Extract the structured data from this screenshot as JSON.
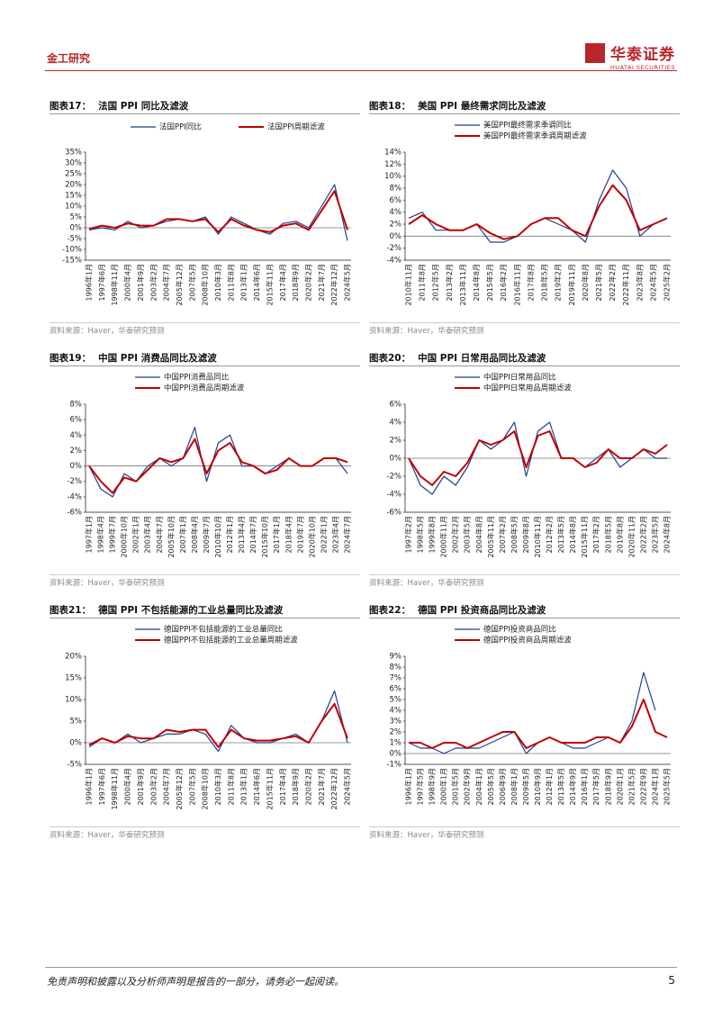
{
  "header": {
    "section": "金工研究",
    "brand": "华泰证券",
    "brand_en": "HUATAI SECURITIES"
  },
  "charts": [
    {
      "type": "line",
      "label": "图表17：",
      "title": "法国 PPI 同比及滤波",
      "categories": [
        "1996年1月",
        "1997年6月",
        "1998年11月",
        "2000年4月",
        "2001年9月",
        "2003年2月",
        "2004年7月",
        "2005年12月",
        "2007年5月",
        "2008年10月",
        "2010年3月",
        "2011年8月",
        "2013年1月",
        "2014年6月",
        "2015年11月",
        "2017年4月",
        "2018年9月",
        "2020年2月",
        "2021年7月",
        "2022年12月",
        "2024年5月"
      ],
      "series": [
        {
          "name": "法国PPI同比",
          "color": "#1f3f8f",
          "values": [
            -1,
            0,
            -1,
            3,
            0,
            1,
            3,
            4,
            3,
            5,
            -3,
            5,
            2,
            -1,
            -3,
            2,
            3,
            0,
            10,
            20,
            -6
          ]
        },
        {
          "name": "法国PPI周期滤波",
          "color": "#c00000",
          "values": [
            -0.5,
            1,
            0,
            2,
            1,
            1,
            4,
            4,
            3,
            4,
            -2,
            4,
            1,
            -1,
            -2,
            1,
            2,
            -1,
            8,
            17,
            -1
          ]
        }
      ],
      "ylim": [
        -15,
        35
      ],
      "yticks": [
        {
          "value": -15,
          "label": "-15%"
        },
        {
          "value": -10,
          "label": "-10%"
        },
        {
          "value": -5,
          "label": "-5%"
        },
        {
          "value": 0,
          "label": "0%"
        },
        {
          "value": 5,
          "label": "5%"
        },
        {
          "value": 10,
          "label": "10%"
        },
        {
          "value": 15,
          "label": "15%"
        },
        {
          "value": 20,
          "label": "20%"
        },
        {
          "value": 25,
          "label": "25%"
        },
        {
          "value": 30,
          "label": "30%"
        },
        {
          "value": 35,
          "label": "35%"
        }
      ],
      "source": "资料来源：Haver，华泰研究预测"
    },
    {
      "type": "line",
      "label": "图表18：",
      "title": "美国 PPI 最终需求同比及滤波",
      "categories": [
        "2010年11月",
        "2011年8月",
        "2012年5月",
        "2013年2月",
        "2013年11月",
        "2014年8月",
        "2015年5月",
        "2016年2月",
        "2016年11月",
        "2017年8月",
        "2018年5月",
        "2019年2月",
        "2019年11月",
        "2020年8月",
        "2021年5月",
        "2022年2月",
        "2022年11月",
        "2023年8月",
        "2024年5月",
        "2025年2月"
      ],
      "series": [
        {
          "name": "美国PPI最终需求季调同比",
          "color": "#1f3f8f",
          "values": [
            3,
            4,
            1,
            1,
            1,
            2,
            -1,
            -1,
            0,
            2,
            3,
            2,
            1,
            -1,
            6,
            11,
            8,
            0,
            2,
            null
          ]
        },
        {
          "name": "美国PPI最终需求季调周期滤波",
          "color": "#c00000",
          "values": [
            2,
            3.5,
            2,
            1,
            1,
            2,
            0.5,
            -0.5,
            0,
            2,
            3,
            3,
            1,
            0,
            5,
            8.5,
            6,
            1,
            2,
            3
          ]
        }
      ],
      "ylim": [
        -4,
        14
      ],
      "yticks": [
        {
          "value": -4,
          "label": "-4%"
        },
        {
          "value": -2,
          "label": "-2%"
        },
        {
          "value": 0,
          "label": "0%"
        },
        {
          "value": 2,
          "label": "2%"
        },
        {
          "value": 4,
          "label": "4%"
        },
        {
          "value": 6,
          "label": "6%"
        },
        {
          "value": 8,
          "label": "8%"
        },
        {
          "value": 10,
          "label": "10%"
        },
        {
          "value": 12,
          "label": "12%"
        },
        {
          "value": 14,
          "label": "14%"
        }
      ],
      "source": "资料来源：Haver，华泰研究预测"
    },
    {
      "type": "line",
      "label": "图表19：",
      "title": "中国 PPI 消费品同比及滤波",
      "categories": [
        "1997年1月",
        "1998年4月",
        "1999年7月",
        "2000年10月",
        "2002年1月",
        "2003年4月",
        "2004年7月",
        "2005年10月",
        "2007年1月",
        "2008年4月",
        "2009年7月",
        "2010年10月",
        "2012年1月",
        "2013年4月",
        "2014年7月",
        "2015年10月",
        "2017年1月",
        "2018年4月",
        "2019年7月",
        "2020年10月",
        "2022年1月",
        "2023年4月",
        "2024年7月"
      ],
      "series": [
        {
          "name": "中国PPI消费品同比",
          "color": "#1f3f8f",
          "values": [
            0,
            -3,
            -4,
            -1,
            -2,
            0,
            1,
            0,
            1,
            5,
            -2,
            3,
            4,
            0,
            0,
            -1,
            0,
            1,
            0,
            0,
            1,
            1,
            -1
          ]
        },
        {
          "name": "中国PPI消费品周期滤波",
          "color": "#c00000",
          "values": [
            0,
            -2,
            -3.5,
            -1.5,
            -2,
            -0.5,
            1,
            0.5,
            1,
            3.5,
            -1,
            2,
            3,
            0.5,
            0,
            -1,
            -0.5,
            1,
            0,
            0,
            1,
            1,
            0.5
          ]
        }
      ],
      "ylim": [
        -6,
        8
      ],
      "yticks": [
        {
          "value": -6,
          "label": "-6%"
        },
        {
          "value": -4,
          "label": "-4%"
        },
        {
          "value": -2,
          "label": "-2%"
        },
        {
          "value": 0,
          "label": "0%"
        },
        {
          "value": 2,
          "label": "2%"
        },
        {
          "value": 4,
          "label": "4%"
        },
        {
          "value": 6,
          "label": "6%"
        },
        {
          "value": 8,
          "label": "8%"
        }
      ],
      "source": "资料来源：Haver，华泰研究预测"
    },
    {
      "type": "line",
      "label": "图表20：",
      "title": "中国 PPI 日常用品同比及滤波",
      "categories": [
        "1997年2月",
        "1998年5月",
        "1999年8月",
        "2000年11月",
        "2002年2月",
        "2003年5月",
        "2004年8月",
        "2005年11月",
        "2007年2月",
        "2008年5月",
        "2009年8月",
        "2010年11月",
        "2012年2月",
        "2013年5月",
        "2014年8月",
        "2015年11月",
        "2017年2月",
        "2018年5月",
        "2019年8月",
        "2020年11月",
        "2022年2月",
        "2023年5月",
        "2024年8月"
      ],
      "series": [
        {
          "name": "中国PPI日常用品同比",
          "color": "#1f3f8f",
          "values": [
            0,
            -3,
            -4,
            -2,
            -3,
            -1,
            2,
            1,
            2,
            4,
            -2,
            3,
            4,
            0,
            0,
            -1,
            0,
            1,
            -1,
            0,
            1,
            0,
            0
          ]
        },
        {
          "name": "中国PPI日常用品周期滤波",
          "color": "#c00000",
          "values": [
            0,
            -2,
            -3,
            -1.5,
            -2,
            -0.5,
            2,
            1.5,
            2,
            3,
            -1,
            2.5,
            3,
            0,
            0,
            -1,
            -0.5,
            1,
            0,
            0,
            1,
            0.5,
            1.5
          ]
        }
      ],
      "ylim": [
        -6,
        6
      ],
      "yticks": [
        {
          "value": -6,
          "label": "-6%"
        },
        {
          "value": -4,
          "label": "-4%"
        },
        {
          "value": -2,
          "label": "-2%"
        },
        {
          "value": 0,
          "label": "0%"
        },
        {
          "value": 2,
          "label": "2%"
        },
        {
          "value": 4,
          "label": "4%"
        },
        {
          "value": 6,
          "label": "6%"
        }
      ],
      "source": "资料来源：Haver，华泰研究预测"
    },
    {
      "type": "line",
      "label": "图表21：",
      "title": "德国 PPI 不包括能源的工业总量同比及滤波",
      "categories": [
        "1996年1月",
        "1997年6月",
        "1998年11月",
        "2000年4月",
        "2001年9月",
        "2003年2月",
        "2004年7月",
        "2005年12月",
        "2007年5月",
        "2008年10月",
        "2010年3月",
        "2011年8月",
        "2013年1月",
        "2014年6月",
        "2015年11月",
        "2017年4月",
        "2018年9月",
        "2020年2月",
        "2021年7月",
        "2022年12月",
        "2024年5月"
      ],
      "series": [
        {
          "name": "德国PPI不包括能源的工业总量同比",
          "color": "#1f3f8f",
          "values": [
            -1,
            1,
            0,
            2,
            0,
            1,
            2,
            2,
            3,
            2,
            -2,
            4,
            1,
            0,
            0,
            1,
            2,
            0,
            5,
            12,
            0
          ]
        },
        {
          "name": "德国PPI不包括能源的工业总量周期滤波",
          "color": "#c00000",
          "values": [
            -0.5,
            1,
            0,
            1.5,
            1,
            1,
            3,
            2.5,
            3,
            3,
            -1,
            3,
            1,
            0.5,
            0.5,
            1,
            1.5,
            0,
            5,
            9,
            1
          ]
        }
      ],
      "ylim": [
        -5,
        20
      ],
      "yticks": [
        {
          "value": -5,
          "label": "-5%"
        },
        {
          "value": 0,
          "label": "0%"
        },
        {
          "value": 5,
          "label": "5%"
        },
        {
          "value": 10,
          "label": "10%"
        },
        {
          "value": 15,
          "label": "15%"
        },
        {
          "value": 20,
          "label": "20%"
        }
      ],
      "source": "资料来源：Haver，华泰研究预测"
    },
    {
      "type": "line",
      "label": "图表22：",
      "title": "德国 PPI 投资商品同比及滤波",
      "categories": [
        "1996年1月",
        "1997年5月",
        "1998年9月",
        "2000年1月",
        "2001年5月",
        "2002年9月",
        "2004年1月",
        "2005年5月",
        "2006年9月",
        "2008年1月",
        "2009年5月",
        "2010年9月",
        "2012年1月",
        "2013年5月",
        "2014年9月",
        "2016年1月",
        "2017年5月",
        "2018年9月",
        "2020年1月",
        "2021年5月",
        "2022年9月",
        "2024年1月",
        "2025年5月"
      ],
      "series": [
        {
          "name": "德国PPI投资商品同比",
          "color": "#1f3f8f",
          "values": [
            1,
            0.5,
            0.5,
            0,
            0.5,
            0.5,
            0.5,
            1,
            1.5,
            2,
            0,
            1,
            1.5,
            1,
            0.5,
            0.5,
            1,
            1.5,
            1,
            3,
            7.5,
            4,
            null
          ]
        },
        {
          "name": "德国PPI投资商品周期滤波",
          "color": "#c00000",
          "values": [
            1,
            1,
            0.5,
            1,
            1,
            0.5,
            1,
            1.5,
            2,
            2,
            0.5,
            1,
            1.5,
            1,
            1,
            1,
            1.5,
            1.5,
            1,
            2.5,
            5,
            2,
            1.5
          ]
        }
      ],
      "ylim": [
        -1,
        9
      ],
      "yticks": [
        {
          "value": -1,
          "label": "-1%"
        },
        {
          "value": 0,
          "label": "0%"
        },
        {
          "value": 1,
          "label": "1%"
        },
        {
          "value": 2,
          "label": "2%"
        },
        {
          "value": 3,
          "label": "3%"
        },
        {
          "value": 4,
          "label": "4%"
        },
        {
          "value": 5,
          "label": "5%"
        },
        {
          "value": 6,
          "label": "6%"
        },
        {
          "value": 7,
          "label": "7%"
        },
        {
          "value": 8,
          "label": "8%"
        },
        {
          "value": 9,
          "label": "9%"
        }
      ],
      "source": "资料来源：Haver，华泰研究预测"
    }
  ],
  "footer": {
    "disclaimer": "免责声明和披露以及分析师声明是报告的一部分，请务必一起阅读。",
    "page": "5"
  }
}
